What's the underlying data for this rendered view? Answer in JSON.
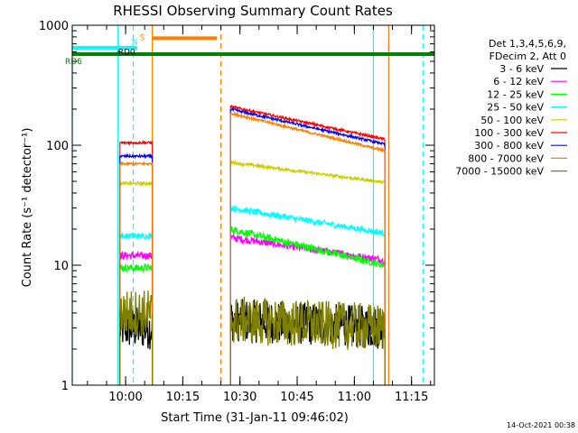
{
  "chart_data": {
    "type": "line",
    "title": "RHESSI Observing Summary Count Rates",
    "xlabel": "Start Time (31-Jan-11 09:46:02)",
    "ylabel": "Count Rate (s⁻¹ detector⁻¹)",
    "ylog": true,
    "ylim": [
      1,
      1000
    ],
    "xlim_minutes_after_start": [
      0,
      95
    ],
    "y_ticks": [
      "1",
      "10",
      "100",
      "1000"
    ],
    "x_ticks": [
      {
        "label": "10:00",
        "t": 14
      },
      {
        "label": "10:15",
        "t": 29
      },
      {
        "label": "10:30",
        "t": 44
      },
      {
        "label": "10:45",
        "t": 59
      },
      {
        "label": "11:00",
        "t": 74
      },
      {
        "label": "11:15",
        "t": 89
      }
    ],
    "legend_header": [
      "Det 1,3,4,5,6,9,",
      "FDecim 2, Att 0"
    ],
    "series": [
      {
        "name": "3 - 6 keV",
        "color": "#000000",
        "seg1": 3,
        "seg2_start": 3.5,
        "seg2_end": 3.0,
        "noise": 0.18
      },
      {
        "name": "6 - 12 keV",
        "color": "#ff00ff",
        "seg1": 12,
        "seg2_start": 17,
        "seg2_end": 11,
        "noise": 0.03
      },
      {
        "name": "12 - 25 keV",
        "color": "#00ff00",
        "seg1": 9.5,
        "seg2_start": 20,
        "seg2_end": 10,
        "noise": 0.03
      },
      {
        "name": "25 - 50 keV",
        "color": "#00ffff",
        "seg1": 17.5,
        "seg2_start": 30,
        "seg2_end": 18.5,
        "noise": 0.025
      },
      {
        "name": "50 - 100 keV",
        "color": "#cccc00",
        "seg1": 48,
        "seg2_start": 72,
        "seg2_end": 49,
        "noise": 0.012
      },
      {
        "name": "100 - 300 keV",
        "color": "#ff0000",
        "seg1": 105,
        "seg2_start": 210,
        "seg2_end": 112,
        "noise": 0.01
      },
      {
        "name": "300 - 800 keV",
        "color": "#0000ff",
        "seg1": 81,
        "seg2_start": 200,
        "seg2_end": 102,
        "noise": 0.01
      },
      {
        "name": "800 - 7000 keV",
        "color": "#ff8000",
        "seg1": 70,
        "seg2_start": 185,
        "seg2_end": 90,
        "noise": 0.01
      },
      {
        "name": "7000 - 15000 keV",
        "color": "#808000",
        "seg1": 4,
        "seg2_start": 3.5,
        "seg2_end": 3.0,
        "noise": 0.2
      }
    ],
    "data_segments_minutes": [
      [
        12.5,
        21
      ],
      [
        41.5,
        82
      ]
    ],
    "flags": [
      {
        "label": "S",
        "color": "#ff8000",
        "t_start": 21,
        "t_end": 38,
        "y": 780
      },
      {
        "label": "N",
        "color": "#00ffff",
        "t_start": 0,
        "t_end": 17,
        "y": 650
      },
      {
        "label": "RD0",
        "color": "#000000",
        "t_start": 12,
        "t_end": 12.5,
        "y": 590
      },
      {
        "label": "RD6",
        "color": "#008000",
        "t_start": 0,
        "t_end": 95,
        "y": 575
      }
    ],
    "vlines": [
      {
        "t": 0,
        "color": "#00ffff",
        "dash": false
      },
      {
        "t": 12,
        "color": "#00ffff",
        "dash": false
      },
      {
        "t": 16,
        "color": "#00ffff",
        "dash": true
      },
      {
        "t": 21,
        "color": "#ff8000",
        "dash": false
      },
      {
        "t": 39,
        "color": "#ff8000",
        "dash": true
      },
      {
        "t": 79,
        "color": "#00ffff",
        "dash": false
      },
      {
        "t": 83,
        "color": "#ff8000",
        "dash": false
      },
      {
        "t": 92,
        "color": "#00ffff",
        "dash": true
      }
    ],
    "footer_date": "14-Oct-2021 00:38"
  }
}
